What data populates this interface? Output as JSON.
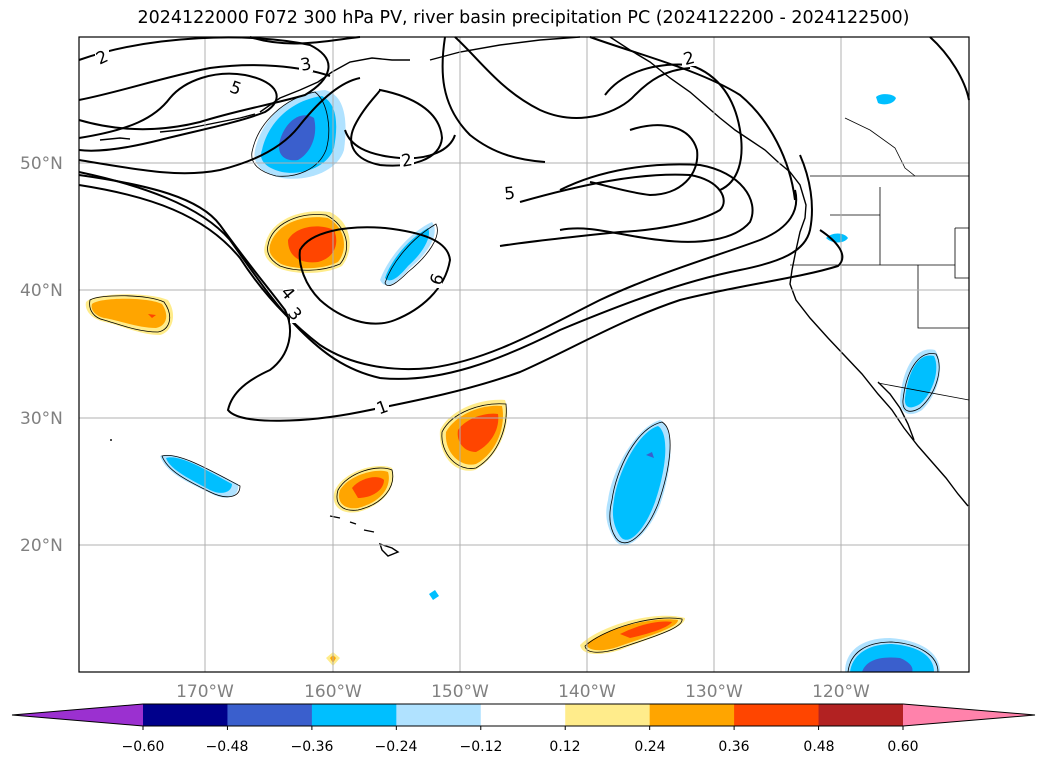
{
  "title": "2024122000 F072 300 hPa PV, river basin precipitation PC (2024122200 - 2024122500)",
  "map": {
    "lat_labels": [
      "50°N",
      "40°N",
      "30°N",
      "20°N"
    ],
    "lon_labels": [
      "170°W",
      "160°W",
      "150°W",
      "140°W",
      "130°W",
      "120°W"
    ],
    "pv_contour_labels": [
      "2",
      "3",
      "5",
      "2",
      "2",
      "5",
      "4",
      "3",
      "6",
      "1"
    ]
  },
  "colorbar": {
    "ticks": [
      "−0.60",
      "−0.48",
      "−0.36",
      "−0.24",
      "−0.12",
      "0.12",
      "0.24",
      "0.36",
      "0.48",
      "0.60"
    ],
    "colors": [
      "#9b30d0",
      "#00008b",
      "#3a5fcd",
      "#00bfff",
      "#b0e2ff",
      "#ffffff",
      "#ffec8b",
      "#ffa500",
      "#ff4500",
      "#b22222",
      "#ff82ab"
    ]
  }
}
